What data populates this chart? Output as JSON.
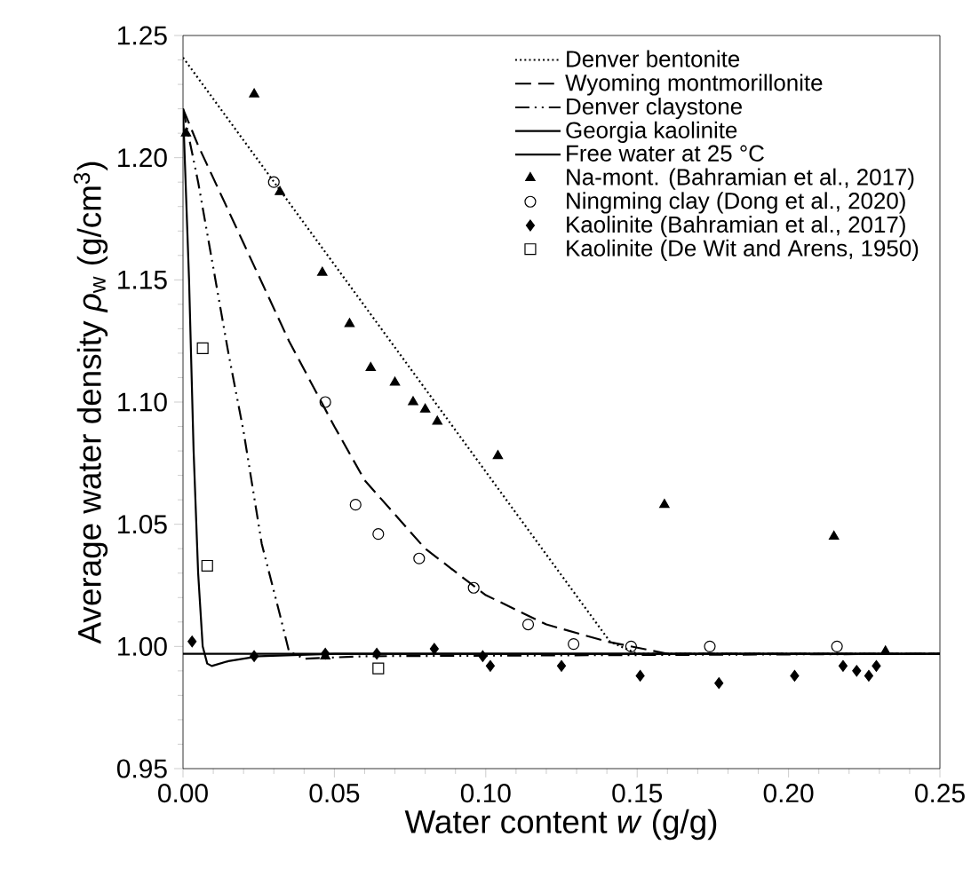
{
  "chart_data": {
    "type": "line",
    "xlabel": "Water content *w* (g/g)",
    "ylabel": "Average water density *ρ*$_{w}$ (g/cm$^{3}$)",
    "xlim": [
      0,
      0.25
    ],
    "ylim": [
      0.95,
      1.25
    ],
    "xticks": [
      {
        "value": 0,
        "label": "0.00"
      },
      {
        "value": 0.05,
        "label": "0.05"
      },
      {
        "value": 0.1,
        "label": "0.10"
      },
      {
        "value": 0.15,
        "label": "0.15"
      },
      {
        "value": 0.2,
        "label": "0.20"
      },
      {
        "value": 0.25,
        "label": "0.25"
      }
    ],
    "yticks": [
      0.95,
      {
        "value": 1.0,
        "label": "1.00"
      },
      1.05,
      {
        "value": 1.1,
        "label": "1.10"
      },
      1.15,
      {
        "value": 1.2,
        "label": "1.20"
      },
      1.25
    ],
    "grid": false,
    "legend": "top right",
    "series": [
      {
        "name": "Denver bentonite",
        "line_style": "dotted",
        "color": "#000000",
        "x": [
          0,
          0.141,
          0.15,
          0.25
        ],
        "values": [
          1.241,
          1.002,
          0.997,
          0.997
        ]
      },
      {
        "name": "Wyoming montmorillonite",
        "line_style": "dashed",
        "color": "#000000",
        "x": [
          0,
          0.005,
          0.02,
          0.035,
          0.05,
          0.06,
          0.08,
          0.1,
          0.12,
          0.14,
          0.16,
          0.25
        ],
        "values": [
          1.22,
          1.205,
          1.165,
          1.125,
          1.09,
          1.068,
          1.04,
          1.021,
          1.009,
          1.002,
          0.997,
          0.997
        ]
      },
      {
        "name": "Denver claystone",
        "line_style": "dashdotdot",
        "color": "#000000",
        "x": [
          0,
          0.005,
          0.01,
          0.015,
          0.02,
          0.026,
          0.032,
          0.035,
          0.04,
          0.06,
          0.25
        ],
        "values": [
          1.22,
          1.19,
          1.155,
          1.12,
          1.088,
          1.042,
          1.013,
          0.998,
          0.995,
          0.996,
          0.997
        ]
      },
      {
        "name": "Georgia kaolinite",
        "line_style": "solid",
        "color": "#000000",
        "x": [
          0,
          0.002,
          0.0035,
          0.005,
          0.0065,
          0.008,
          0.0095,
          0.015,
          0.025,
          0.05,
          0.25
        ],
        "values": [
          1.22,
          1.15,
          1.08,
          1.03,
          1.0,
          0.993,
          0.992,
          0.994,
          0.996,
          0.997,
          0.997
        ]
      },
      {
        "name": "Free water at 25 °C",
        "line_style": "solid",
        "color": "#000000",
        "x": [
          0,
          0.25
        ],
        "values": [
          0.997,
          0.997
        ]
      },
      {
        "name": "Na-mont. (Bahramian et al., 2017)",
        "type": "scatter",
        "marker": "triangle",
        "color": "#000000",
        "x": [
          0.001,
          0.0235,
          0.032,
          0.046,
          0.047,
          0.055,
          0.062,
          0.07,
          0.076,
          0.08,
          0.084,
          0.104,
          0.159,
          0.215,
          0.232
        ],
        "values": [
          1.21,
          1.226,
          1.186,
          1.153,
          0.996,
          1.132,
          1.114,
          1.108,
          1.1,
          1.097,
          1.092,
          1.078,
          1.058,
          1.045,
          0.998
        ]
      },
      {
        "name": "Ningming clay (Dong et al., 2020)",
        "type": "scatter",
        "marker": "circle",
        "color": "#000000",
        "x": [
          0.03,
          0.047,
          0.057,
          0.0645,
          0.078,
          0.096,
          0.114,
          0.129,
          0.148,
          0.174,
          0.216
        ],
        "values": [
          1.19,
          1.1,
          1.058,
          1.046,
          1.036,
          1.024,
          1.009,
          1.001,
          1.0,
          1.0,
          1.0
        ]
      },
      {
        "name": "Kaolinite (Bahramian et al., 2017)",
        "type": "scatter",
        "marker": "diamond",
        "color": "#000000",
        "x": [
          0.003,
          0.0235,
          0.047,
          0.064,
          0.083,
          0.099,
          0.1015,
          0.125,
          0.151,
          0.177,
          0.202,
          0.218,
          0.2225,
          0.2265,
          0.229
        ],
        "values": [
          1.002,
          0.996,
          0.997,
          0.997,
          0.999,
          0.996,
          0.992,
          0.992,
          0.988,
          0.985,
          0.988,
          0.992,
          0.99,
          0.988,
          0.992
        ]
      },
      {
        "name": "Kaolinite (De Wit and Arens, 1950)",
        "type": "scatter",
        "marker": "square",
        "color": "#000000",
        "x": [
          0.0065,
          0.008,
          0.0645
        ],
        "values": [
          1.122,
          1.033,
          0.991
        ]
      }
    ]
  }
}
